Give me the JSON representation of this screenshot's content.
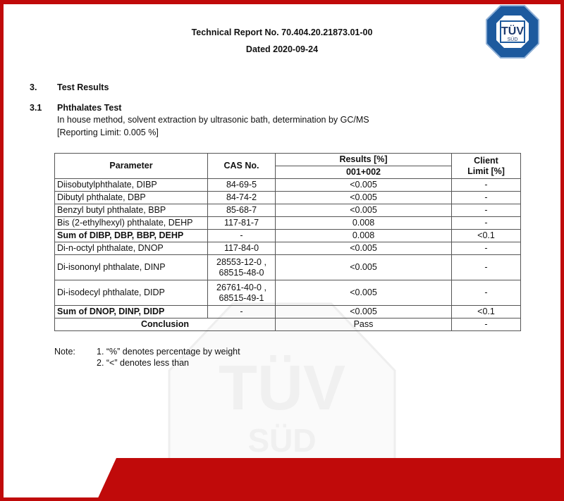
{
  "header": {
    "report_no": "Technical Report No. 70.404.20.21873.01-00",
    "dated": "Dated 2020-09-24"
  },
  "logo": {
    "top": "TÜV",
    "bottom": "SÜD",
    "color": "#1d5a9e"
  },
  "watermark": {
    "top": "TÜV",
    "bottom": "SÜD"
  },
  "section": {
    "number": "3.",
    "title": "Test Results"
  },
  "subsection": {
    "number": "3.1",
    "title": "Phthalates Test",
    "method": "In house method, solvent extraction by ultrasonic bath, determination by GC/MS",
    "limit": "[Reporting Limit: 0.005 %]"
  },
  "table": {
    "headers": {
      "parameter": "Parameter",
      "cas": "CAS No.",
      "results": "Results [%]",
      "sample": "001+002",
      "limit_line1": "Client",
      "limit_line2": "Limit [%]"
    },
    "rows": [
      {
        "parameter": "Diisobutylphthalate, DIBP",
        "cas1": "84-69-5",
        "cas2": "",
        "result": "<0.005",
        "limit": "-",
        "bold": false
      },
      {
        "parameter": "Dibutyl phthalate, DBP",
        "cas1": "84-74-2",
        "cas2": "",
        "result": "<0.005",
        "limit": "-",
        "bold": false
      },
      {
        "parameter": "Benzyl butyl phthalate, BBP",
        "cas1": "85-68-7",
        "cas2": "",
        "result": "<0.005",
        "limit": "-",
        "bold": false
      },
      {
        "parameter": "Bis (2-ethylhexyl) phthalate, DEHP",
        "cas1": "117-81-7",
        "cas2": "",
        "result": "0.008",
        "limit": "-",
        "bold": false
      },
      {
        "parameter": "Sum of DIBP, DBP, BBP, DEHP",
        "cas1": "-",
        "cas2": "",
        "result": "0.008",
        "limit": "<0.1",
        "bold": true
      },
      {
        "parameter": "Di-n-octyl phthalate, DNOP",
        "cas1": "117-84-0",
        "cas2": "",
        "result": "<0.005",
        "limit": "-",
        "bold": false
      },
      {
        "parameter": "Di-isononyl phthalate, DINP",
        "cas1": "28553-12-0 ,",
        "cas2": "68515-48-0",
        "result": "<0.005",
        "limit": "-",
        "bold": false
      },
      {
        "parameter": "Di-isodecyl phthalate, DIDP",
        "cas1": "26761-40-0 ,",
        "cas2": "68515-49-1",
        "result": "<0.005",
        "limit": "-",
        "bold": false
      },
      {
        "parameter": "Sum of DNOP, DINP, DIDP",
        "cas1": "-",
        "cas2": "",
        "result": "<0.005",
        "limit": "<0.1",
        "bold": true
      }
    ],
    "conclusion": {
      "label": "Conclusion",
      "result": "Pass",
      "limit": "-"
    }
  },
  "notes": {
    "label": "Note:",
    "items": [
      "1. “%” denotes percentage by weight",
      "2. “<” denotes less than"
    ]
  },
  "colors": {
    "frame_red": "#c00a0a",
    "logo_blue": "#1d5a9e"
  }
}
